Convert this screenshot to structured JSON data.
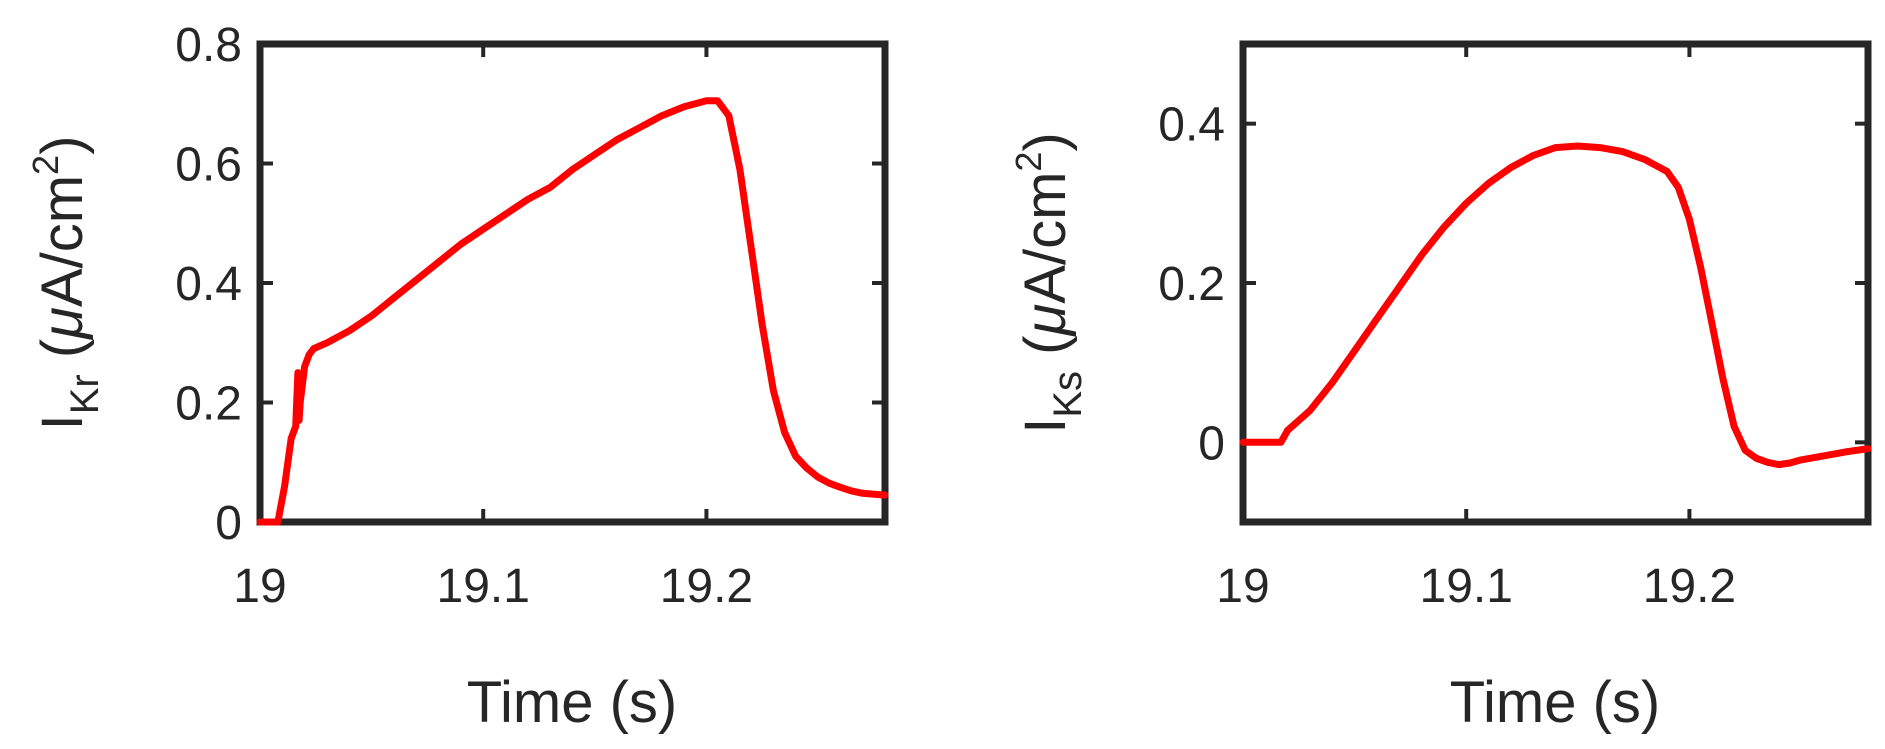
{
  "colors": {
    "line": "#ff0000",
    "axis": "#262626",
    "background": "#ffffff"
  },
  "chart_data": [
    {
      "type": "line",
      "title": "",
      "xlabel": "Time (s)",
      "ylabel": {
        "symbol": "I",
        "subscript": "Kr",
        "unit_prefix": " (",
        "unit_mu": "μ",
        "unit_main": "A/cm",
        "unit_sup": "2",
        "unit_suffix": ")"
      },
      "xlim": [
        19.0,
        19.28
      ],
      "ylim": [
        0,
        0.8
      ],
      "xticks": [
        19.0,
        19.1,
        19.2
      ],
      "xtick_labels": [
        "19",
        "19.1",
        "19.2"
      ],
      "yticks": [
        0,
        0.2,
        0.4,
        0.6,
        0.8
      ],
      "ytick_labels": [
        "0",
        "0.2",
        "0.4",
        "0.6",
        "0.8"
      ],
      "grid": false,
      "series": [
        {
          "x": [
            19.0,
            19.008,
            19.011,
            19.014,
            19.016,
            19.017,
            19.0175,
            19.018,
            19.019,
            19.02,
            19.022,
            19.024,
            19.027,
            19.03,
            19.04,
            19.05,
            19.06,
            19.07,
            19.08,
            19.09,
            19.1,
            19.11,
            19.12,
            19.13,
            19.14,
            19.15,
            19.16,
            19.17,
            19.18,
            19.19,
            19.2,
            19.205,
            19.21,
            19.215,
            19.22,
            19.225,
            19.23,
            19.235,
            19.24,
            19.245,
            19.25,
            19.255,
            19.26,
            19.265,
            19.27,
            19.28
          ],
          "y": [
            0.0,
            0.0,
            0.06,
            0.14,
            0.16,
            0.25,
            0.17,
            0.2,
            0.23,
            0.26,
            0.28,
            0.29,
            0.295,
            0.3,
            0.32,
            0.345,
            0.375,
            0.405,
            0.435,
            0.465,
            0.49,
            0.515,
            0.54,
            0.56,
            0.59,
            0.615,
            0.64,
            0.66,
            0.68,
            0.695,
            0.705,
            0.705,
            0.68,
            0.59,
            0.46,
            0.33,
            0.22,
            0.15,
            0.11,
            0.09,
            0.075,
            0.065,
            0.058,
            0.052,
            0.048,
            0.045
          ]
        }
      ]
    },
    {
      "type": "line",
      "title": "",
      "xlabel": "Time (s)",
      "ylabel": {
        "symbol": "I",
        "subscript": "Ks",
        "unit_prefix": " (",
        "unit_mu": "μ",
        "unit_main": "A/cm",
        "unit_sup": "2",
        "unit_suffix": ")"
      },
      "xlim": [
        19.0,
        19.28
      ],
      "ylim": [
        -0.1,
        0.5
      ],
      "xticks": [
        19.0,
        19.1,
        19.2
      ],
      "xtick_labels": [
        "19",
        "19.1",
        "19.2"
      ],
      "yticks": [
        0,
        0.2,
        0.4
      ],
      "ytick_labels": [
        "0",
        "0.2",
        "0.4"
      ],
      "grid": false,
      "series": [
        {
          "x": [
            19.0,
            19.017,
            19.02,
            19.03,
            19.04,
            19.05,
            19.06,
            19.07,
            19.08,
            19.09,
            19.1,
            19.11,
            19.12,
            19.13,
            19.14,
            19.15,
            19.16,
            19.17,
            19.18,
            19.19,
            19.195,
            19.2,
            19.205,
            19.21,
            19.215,
            19.22,
            19.225,
            19.23,
            19.235,
            19.24,
            19.245,
            19.25,
            19.26,
            19.27,
            19.28
          ],
          "y": [
            0.0,
            0.0,
            0.015,
            0.04,
            0.075,
            0.115,
            0.155,
            0.195,
            0.235,
            0.27,
            0.3,
            0.325,
            0.345,
            0.36,
            0.37,
            0.372,
            0.37,
            0.365,
            0.355,
            0.34,
            0.32,
            0.28,
            0.22,
            0.15,
            0.08,
            0.02,
            -0.01,
            -0.02,
            -0.025,
            -0.028,
            -0.026,
            -0.022,
            -0.017,
            -0.012,
            -0.008
          ]
        }
      ]
    }
  ]
}
